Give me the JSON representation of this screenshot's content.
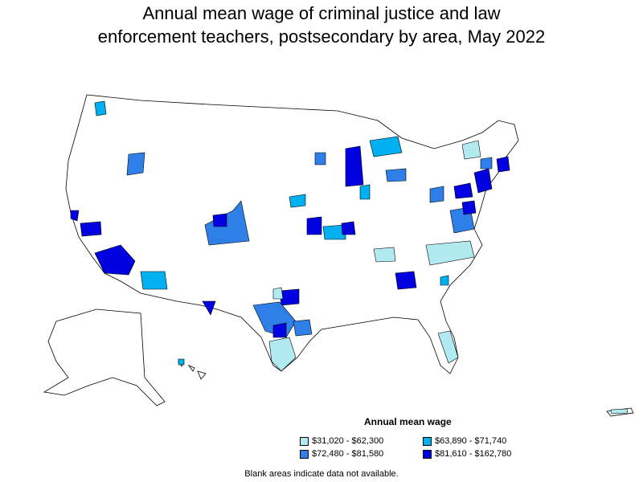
{
  "title_line1": "Annual mean wage of criminal justice and law",
  "title_line2": "enforcement teachers, postsecondary by area, May 2022",
  "legend": {
    "title": "Annual mean wage",
    "items": [
      {
        "label": "$31,020 - $62,300",
        "color": "#b2eaf2"
      },
      {
        "label": "$63,890 - $71,740",
        "color": "#00b0f0"
      },
      {
        "label": "$72,480 - $81,580",
        "color": "#2f7fe8"
      },
      {
        "label": "$81,610 - $162,780",
        "color": "#0000e0"
      }
    ]
  },
  "footnote": "Blank areas indicate data not available."
}
